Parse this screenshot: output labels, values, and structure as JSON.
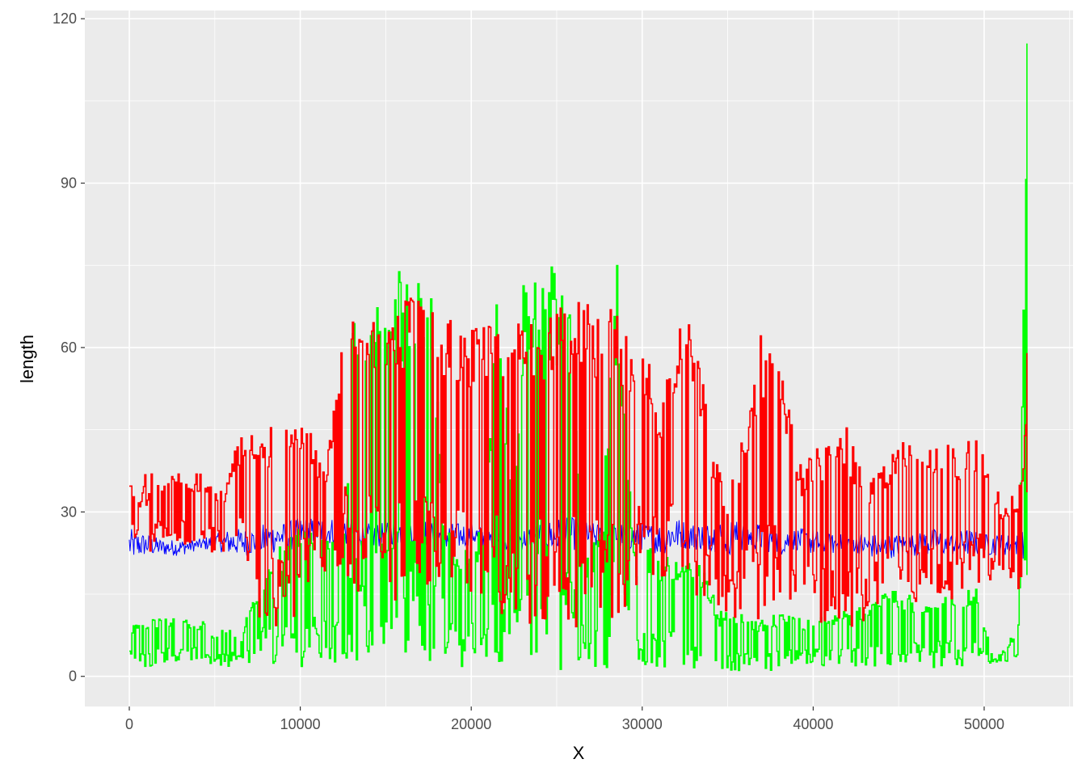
{
  "chart_data": {
    "type": "line",
    "title": "",
    "xlabel": "X",
    "ylabel": "length",
    "xlim": [
      -2600,
      55200
    ],
    "ylim": [
      -5.5,
      121.5
    ],
    "x_ticks": [
      0,
      10000,
      20000,
      30000,
      40000,
      50000
    ],
    "x_tick_labels": [
      "0",
      "10000",
      "20000",
      "30000",
      "40000",
      "50000"
    ],
    "y_ticks": [
      0,
      30,
      60,
      90,
      120
    ],
    "y_tick_labels": [
      "0",
      "30",
      "60",
      "90",
      "120"
    ],
    "grid": true,
    "legend": "none",
    "colors": {
      "panel_background": "#ebebeb",
      "grid_major": "#ffffff",
      "blue_series": "#0000ff",
      "green_series": "#00ff00",
      "red_series": "#ff0000"
    },
    "series": [
      {
        "color": "#0000ff",
        "x": [
          0,
          1000,
          2000,
          3000,
          4000,
          5000,
          6000,
          7000,
          8000,
          9000,
          10000,
          11000,
          12000,
          13000,
          14000,
          15000,
          16000,
          17000,
          18000,
          19000,
          20000,
          21000,
          22000,
          23000,
          24000,
          25000,
          26000,
          27000,
          28000,
          29000,
          30000,
          31000,
          32000,
          33000,
          34000,
          35000,
          36000,
          37000,
          38000,
          39000,
          40000,
          41000,
          42000,
          43000,
          44000,
          45000,
          46000,
          47000,
          48000,
          49000,
          50000,
          51000,
          52000,
          52500
        ],
        "y_low": [
          21,
          22,
          22,
          22,
          23,
          23,
          22,
          22,
          22,
          23,
          23,
          24,
          24,
          24,
          23,
          24,
          24,
          24,
          23,
          23,
          24,
          23,
          23,
          23,
          24,
          22,
          23,
          23,
          24,
          23,
          23,
          22,
          23,
          23,
          23,
          22,
          23,
          23,
          22,
          23,
          22,
          22,
          23,
          22,
          21,
          22,
          22,
          22,
          22,
          22,
          22,
          22,
          22,
          21
        ],
        "y_high": [
          27,
          26,
          25,
          25,
          25,
          26,
          27,
          27,
          28,
          28,
          29,
          29,
          29,
          29,
          28,
          28,
          29,
          29,
          28,
          28,
          28,
          27,
          27,
          27,
          28,
          29,
          29,
          28,
          28,
          28,
          28,
          28,
          29,
          28,
          28,
          29,
          28,
          28,
          27,
          27,
          27,
          26,
          26,
          26,
          26,
          26,
          26,
          27,
          26,
          27,
          26,
          26,
          26,
          28
        ]
      },
      {
        "color": "#00ff00",
        "x": [
          0,
          800,
          1600,
          2500,
          3500,
          4200,
          5000,
          5800,
          6500,
          7000,
          7800,
          8500,
          9500,
          10500,
          11500,
          12500,
          13200,
          13800,
          14500,
          15200,
          16000,
          16800,
          17500,
          18500,
          19200,
          20000,
          20800,
          21500,
          22500,
          23000,
          24000,
          25000,
          25600,
          26500,
          27500,
          28500,
          29500,
          30500,
          31500,
          32500,
          33500,
          34500,
          35500,
          36500,
          37500,
          38500,
          39500,
          40500,
          41500,
          42500,
          43500,
          44500,
          45500,
          46500,
          47500,
          48500,
          49500,
          50500,
          51200,
          52000,
          52500
        ],
        "y_low": [
          2.5,
          1,
          2.5,
          2.5,
          2.5,
          2.5,
          2,
          1.5,
          2.5,
          2,
          4,
          2,
          1.5,
          2,
          2,
          1.5,
          2,
          1,
          1.5,
          2,
          3,
          2.5,
          2,
          1.5,
          0.5,
          2,
          3,
          2.5,
          2,
          1.5,
          0.5,
          0.5,
          1,
          2,
          1,
          1.5,
          1,
          0.5,
          1,
          1.5,
          1,
          0.5,
          1,
          1.5,
          1,
          1.5,
          2,
          1.5,
          1.5,
          1.5,
          1.5,
          1.5,
          1.5,
          1.5,
          1.5,
          1.5,
          1.5,
          2.5,
          2.5,
          2.5,
          1
        ],
        "y_high": [
          9,
          11,
          10.5,
          10.5,
          10.5,
          10.5,
          7,
          10,
          7,
          14,
          18,
          22,
          30,
          28,
          26,
          25,
          75,
          75,
          75,
          75,
          75,
          75,
          75,
          30,
          22,
          25,
          28,
          75,
          32,
          75,
          75,
          75,
          75,
          22,
          26,
          75,
          22,
          24,
          22,
          21,
          20,
          12,
          12,
          10,
          11,
          12,
          10,
          12,
          12,
          12,
          15,
          16,
          15,
          15,
          16,
          16,
          16,
          3,
          5,
          10,
          115.5
        ]
      },
      {
        "color": "#ff0000",
        "x": [
          0,
          600,
          900,
          1500,
          2500,
          3500,
          4500,
          5500,
          6500,
          7500,
          8500,
          9500,
          10500,
          11500,
          12500,
          13200,
          14000,
          14800,
          15600,
          16400,
          17200,
          18000,
          19000,
          20000,
          21000,
          22000,
          23000,
          24000,
          25000,
          26000,
          27000,
          28000,
          29000,
          30000,
          31000,
          32000,
          33000,
          34000,
          35000,
          36000,
          37000,
          38000,
          39000,
          40000,
          41000,
          42000,
          43000,
          44000,
          45000,
          46000,
          47000,
          48000,
          49000,
          50000,
          51000,
          51800,
          52200,
          52500
        ],
        "y_low": [
          25,
          23,
          11,
          24,
          24,
          24,
          23,
          22,
          22,
          9,
          9,
          9,
          17,
          18,
          18,
          9,
          14,
          18,
          13,
          14,
          16,
          15,
          17,
          13,
          15,
          9,
          9,
          9,
          9,
          9,
          9,
          9,
          9,
          16,
          17,
          16,
          14,
          14,
          9,
          12,
          8,
          8,
          14,
          9,
          8,
          8,
          9,
          14,
          18,
          13,
          15,
          14,
          15,
          18,
          16,
          16,
          16,
          23
        ],
        "y_high": [
          36,
          32,
          37,
          37,
          37,
          37,
          37,
          34,
          45.5,
          45.5,
          45.5,
          45.5,
          45.5,
          38,
          69,
          69,
          69,
          69,
          69,
          69,
          69,
          69,
          65,
          65.5,
          65.5,
          62,
          69,
          69,
          69,
          69,
          69,
          69,
          65,
          65,
          46,
          65.5,
          65,
          44,
          35,
          46,
          65,
          65,
          38,
          42,
          42,
          46,
          38,
          38,
          43,
          43,
          42,
          43,
          43,
          43,
          31,
          34,
          37.5,
          59
        ]
      }
    ]
  }
}
